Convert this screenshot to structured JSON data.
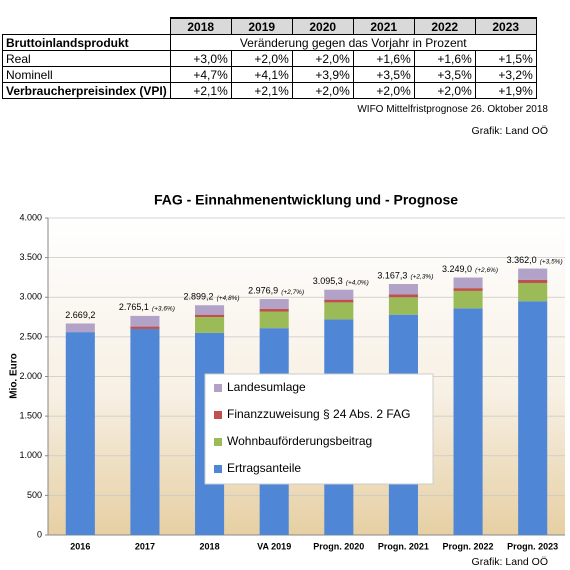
{
  "table": {
    "columns": [
      "2018",
      "2019",
      "2020",
      "2021",
      "2022",
      "2023"
    ],
    "section": {
      "label": "Bruttoinlandsprodukt",
      "note": "Veränderung gegen das Vorjahr in Prozent"
    },
    "rows": [
      {
        "label": "Real",
        "cells": [
          "+3,0%",
          "+2,0%",
          "+2,0%",
          "+1,6%",
          "+1,6%",
          "+1,5%"
        ]
      },
      {
        "label": "Nominell",
        "cells": [
          "+4,7%",
          "+4,1%",
          "+3,9%",
          "+3,5%",
          "+3,5%",
          "+3,2%"
        ]
      },
      {
        "label": "Verbraucherpreisindex (VPI)",
        "cells": [
          "+2,1%",
          "+2,1%",
          "+2,0%",
          "+2,0%",
          "+2,0%",
          "+1,9%"
        ]
      }
    ],
    "source": "WIFO Mittelfristprognose 26. Oktober 2018",
    "credit": "Grafik: Land OÖ"
  },
  "chart_data": {
    "type": "stacked_bar",
    "title": "FAG - Einnahmenentwicklung und - Prognose",
    "y_label": "Mio. Euro",
    "categories": [
      "2016",
      "2017",
      "2018",
      "VA 2019",
      "Progn. 2020",
      "Progn. 2021",
      "Progn. 2022",
      "Progn. 2023"
    ],
    "series": [
      {
        "name": "Ertragsanteile",
        "color": "#4f86d6",
        "values": [
          2560,
          2600,
          2550,
          2610,
          2720,
          2780,
          2860,
          2950
        ]
      },
      {
        "name": "Wohnbauförderungsbeitrag",
        "color": "#9bbb59",
        "values": [
          0,
          0,
          200,
          210,
          215,
          220,
          220,
          230
        ]
      },
      {
        "name": "Finanzzuweisung § 24 Abs. 2 FAG",
        "color": "#c0504d",
        "values": [
          0,
          30,
          30,
          35,
          35,
          35,
          35,
          38
        ]
      },
      {
        "name": "Landesumlage",
        "color": "#b3a2c7",
        "values": [
          109,
          135,
          119,
          122,
          125,
          132,
          134,
          144
        ]
      }
    ],
    "totals": {
      "values": [
        2669.2,
        2765.1,
        2899.2,
        2976.9,
        3095.3,
        3167.3,
        3249.0,
        3362.0
      ],
      "value_labels": [
        "2.669,2",
        "2.765,1",
        "2.899,2",
        "2.976,9",
        "3.095,3",
        "3.167,3",
        "3.249,0",
        "3.362,0"
      ]
    },
    "growth": {
      "values": [
        null,
        3.6,
        4.8,
        2.7,
        4.0,
        2.3,
        2.6,
        3.5
      ],
      "value_labels": [
        null,
        "(+3,6%)",
        "(+4,8%)",
        "(+2,7%)",
        "(+4,0%)",
        "(+2,3%)",
        "(+2,6%)",
        "(+3,5%)"
      ]
    },
    "ylim": [
      0,
      4000
    ],
    "yticks": [
      0,
      500,
      {
        "value": 1000,
        "label": "1.000"
      },
      {
        "value": 1500,
        "label": "1.500"
      },
      {
        "value": 2000,
        "label": "2.000"
      },
      {
        "value": 2500,
        "label": "2.500"
      },
      {
        "value": 3000,
        "label": "3.000"
      },
      {
        "value": 3500,
        "label": "3.500"
      },
      {
        "value": 4000,
        "label": "4.000"
      }
    ],
    "grid": true,
    "legend": "center",
    "credit": "Grafik: Land OÖ"
  }
}
